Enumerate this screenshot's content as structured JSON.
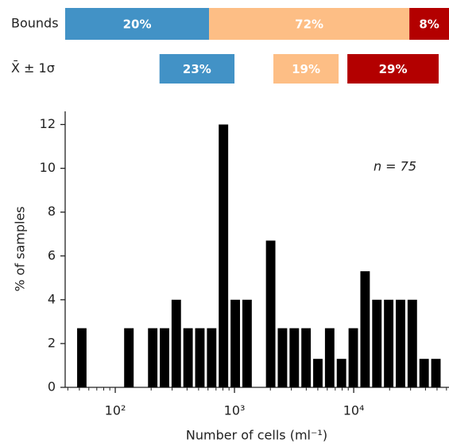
{
  "chart_data": {
    "type": "histogram",
    "xlabel": "Number of cells (ml⁻¹)",
    "ylabel": "% of samples",
    "annotation": "n = 75",
    "color": "#000000",
    "log_x": true,
    "minor_ticks": true,
    "grid": false,
    "xlim": [
      38,
      63000
    ],
    "ylim": [
      0,
      12.6
    ],
    "xticks": [
      {
        "value": 100,
        "label": "10²"
      },
      {
        "value": 1000,
        "label": "10³"
      },
      {
        "value": 10000,
        "label": "10⁴"
      }
    ],
    "yticks": [
      0,
      2,
      4,
      6,
      8,
      10,
      12
    ],
    "bins": [
      46.8,
      58.7,
      73.8,
      92.7,
      116,
      146,
      184,
      231,
      290,
      364,
      457,
      574,
      721,
      906,
      1138,
      1429,
      1795,
      2254,
      2831,
      3556,
      4467,
      5610,
      7047,
      8851,
      11117,
      13964,
      17539,
      22029,
      27669,
      34754,
      43652,
      54828
    ],
    "values": [
      2.7,
      0,
      0,
      0,
      2.7,
      0,
      2.7,
      2.7,
      4,
      2.7,
      2.7,
      2.7,
      12,
      4,
      4,
      0,
      6.7,
      2.7,
      2.7,
      2.7,
      1.3,
      2.7,
      1.3,
      2.7,
      5.3,
      4,
      4,
      4,
      4,
      1.3,
      1.3
    ],
    "bands": [
      {
        "name": "Bounds",
        "ranges": [
          [
            38,
            612
          ],
          [
            612,
            29300
          ],
          [
            29300,
            63000
          ]
        ],
        "values": [
          20,
          72,
          8
        ],
        "value_labels": [
          "20%",
          "72%",
          "8%"
        ],
        "colors": [
          "#4292c6",
          "#fdbe85",
          "#b30000"
        ]
      },
      {
        "name": "X̄ ± 1σ",
        "ranges": [
          [
            235,
            1000
          ],
          [
            2120,
            7470
          ],
          [
            8850,
            51600
          ]
        ],
        "values": [
          23,
          19,
          29
        ],
        "value_labels": [
          "23%",
          "19%",
          "29%"
        ],
        "colors": [
          "#4292c6",
          "#fdbe85",
          "#b30000"
        ]
      }
    ]
  }
}
